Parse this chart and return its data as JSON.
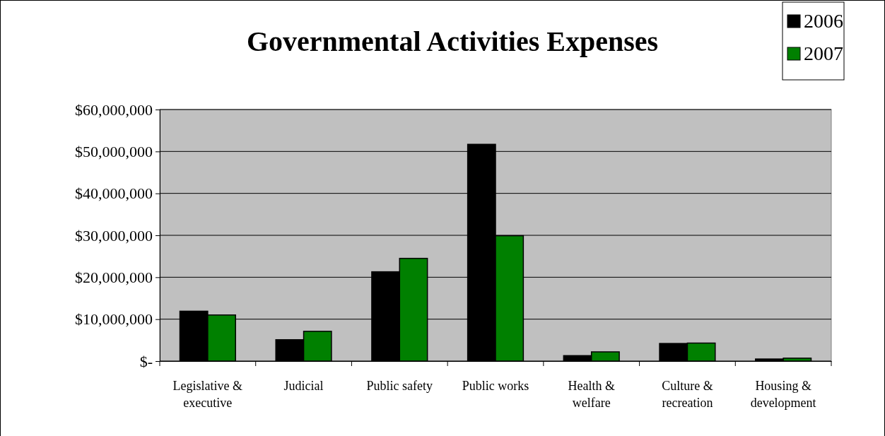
{
  "chart_data": {
    "type": "bar",
    "title": "Governmental Activities Expenses",
    "categories": [
      "Legislative & executive",
      "Judicial",
      "Public safety",
      "Public works",
      "Health & welfare",
      "Culture & recreation",
      "Housing & development"
    ],
    "series": [
      {
        "name": "2006",
        "color": "#000000",
        "values": [
          11900000,
          5100000,
          21300000,
          51700000,
          1300000,
          4200000,
          500000
        ]
      },
      {
        "name": "2007",
        "color": "#008000",
        "values": [
          11000000,
          7100000,
          24500000,
          29900000,
          2200000,
          4300000,
          700000
        ]
      }
    ],
    "ylim": [
      0,
      60000000
    ],
    "yticks": [
      {
        "value": 0,
        "label": "$-"
      },
      {
        "value": 10000000,
        "label": "$10,000,000"
      },
      {
        "value": 20000000,
        "label": "$20,000,000"
      },
      {
        "value": 30000000,
        "label": "$30,000,000"
      },
      {
        "value": 40000000,
        "label": "$40,000,000"
      },
      {
        "value": 50000000,
        "label": "$50,000,000"
      },
      {
        "value": 60000000,
        "label": "$60,000,000"
      }
    ],
    "grid": "y",
    "legend": "top right"
  }
}
